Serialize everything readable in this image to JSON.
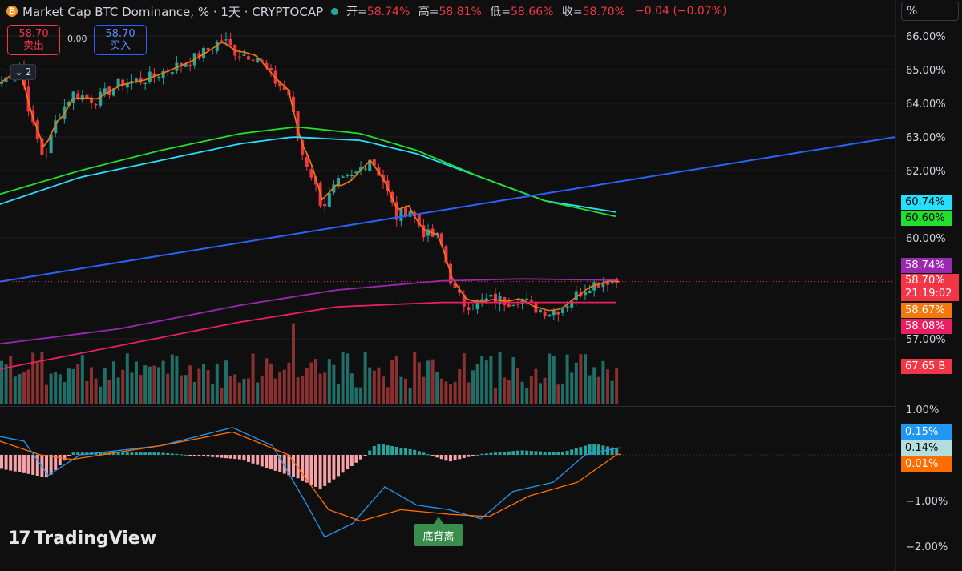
{
  "header": {
    "symbol_icon": "bitcoin-icon",
    "title": "Market Cap BTC Dominance, % · 1天 · CRYPTOCAP",
    "open_label": "开=",
    "open_value": "58.74%",
    "high_label": "高=",
    "high_value": "58.81%",
    "low_label": "低=",
    "low_value": "58.66%",
    "close_label": "收=",
    "close_value": "58.70%",
    "change": "−0.04 (−0.07%)"
  },
  "trade": {
    "sell_price": "58.70",
    "sell_label": "卖出",
    "spread": "0.00",
    "buy_price": "58.70",
    "buy_label": "买入"
  },
  "indicators_toggle": {
    "count": "2",
    "icon": "chevron-down-icon"
  },
  "unit_label": "%",
  "price_tags": {
    "ma_cyan": "60.74%",
    "ma_green": "60.60%",
    "ma_purple": "58.74%",
    "last_price": "58.70%",
    "countdown": "21:19:02",
    "ma_orange": "58.67%",
    "ma_pink": "58.08%",
    "volume": "67.65 B",
    "macd_blue": "0.15%",
    "macd_hist": "0.14%",
    "macd_orange": "0.01%"
  },
  "colors": {
    "up": "#26a69a",
    "down": "#f23645",
    "up_vol": "#1f6f68",
    "down_vol": "#8a3030",
    "ma_cyan": "#26e0ff",
    "ma_green": "#22e02a",
    "ma_orange": "#f5780f",
    "ma_purple": "#9c27b0",
    "ma_pink": "#e91e63",
    "trendline": "#2962ff",
    "macd_line": "#2196f3",
    "signal_line": "#ff6d00"
  },
  "annotation": "底背离",
  "logo_text": "TradingView",
  "chart_data": {
    "type": "candlestick",
    "title": "Market Cap BTC Dominance, %",
    "y_axis_ticks": [
      "66.00%",
      "65.00%",
      "64.00%",
      "63.00%",
      "62.00%",
      "60.00%",
      "57.00%"
    ],
    "macd_axis_ticks": [
      "1.00%",
      "−1.00%",
      "−2.00%"
    ],
    "ylim": [
      56.0,
      66.3
    ],
    "anchors": [
      [
        0,
        64.6
      ],
      [
        25,
        65.1
      ],
      [
        40,
        63.4
      ],
      [
        55,
        62.3
      ],
      [
        70,
        63.5
      ],
      [
        90,
        64.3
      ],
      [
        120,
        64.1
      ],
      [
        150,
        64.6
      ],
      [
        180,
        64.7
      ],
      [
        210,
        65.0
      ],
      [
        240,
        65.3
      ],
      [
        260,
        65.6
      ],
      [
        278,
        65.9
      ],
      [
        295,
        65.5
      ],
      [
        320,
        65.4
      ],
      [
        345,
        64.6
      ],
      [
        360,
        64.3
      ],
      [
        375,
        62.6
      ],
      [
        390,
        61.8
      ],
      [
        402,
        60.9
      ],
      [
        420,
        61.6
      ],
      [
        440,
        61.8
      ],
      [
        462,
        62.4
      ],
      [
        478,
        61.7
      ],
      [
        495,
        60.6
      ],
      [
        510,
        60.9
      ],
      [
        530,
        60.1
      ],
      [
        548,
        60.0
      ],
      [
        565,
        58.5
      ],
      [
        580,
        58.0
      ],
      [
        600,
        58.1
      ],
      [
        615,
        58.2
      ],
      [
        632,
        58.1
      ],
      [
        650,
        58.2
      ],
      [
        668,
        57.9
      ],
      [
        685,
        57.8
      ],
      [
        700,
        57.9
      ],
      [
        718,
        58.3
      ],
      [
        735,
        58.6
      ],
      [
        760,
        58.75
      ],
      [
        770,
        58.7
      ]
    ],
    "moving_averages": [
      {
        "color": "ma_cyan",
        "value": "60.74%",
        "points": [
          [
            0,
            61.0
          ],
          [
            100,
            61.8
          ],
          [
            200,
            62.3
          ],
          [
            300,
            62.8
          ],
          [
            365,
            63.0
          ],
          [
            450,
            62.9
          ],
          [
            520,
            62.5
          ],
          [
            600,
            61.8
          ],
          [
            680,
            61.1
          ],
          [
            775,
            60.74
          ]
        ]
      },
      {
        "color": "ma_green",
        "value": "60.60%",
        "points": [
          [
            0,
            61.3
          ],
          [
            100,
            62.0
          ],
          [
            200,
            62.6
          ],
          [
            300,
            63.1
          ],
          [
            370,
            63.3
          ],
          [
            450,
            63.1
          ],
          [
            520,
            62.6
          ],
          [
            600,
            61.8
          ],
          [
            680,
            61.1
          ],
          [
            775,
            60.6
          ]
        ]
      },
      {
        "color": "ma_purple",
        "value": "58.74%",
        "points": [
          [
            0,
            56.85
          ],
          [
            150,
            57.3
          ],
          [
            300,
            58.0
          ],
          [
            420,
            58.45
          ],
          [
            550,
            58.72
          ],
          [
            650,
            58.78
          ],
          [
            775,
            58.74
          ]
        ]
      },
      {
        "color": "ma_pink",
        "value": "58.08%",
        "points": [
          [
            0,
            56.1
          ],
          [
            150,
            56.8
          ],
          [
            300,
            57.5
          ],
          [
            420,
            57.95
          ],
          [
            550,
            58.08
          ],
          [
            650,
            58.08
          ],
          [
            775,
            58.08
          ]
        ]
      }
    ],
    "trendline": [
      [
        0,
        58.7
      ],
      [
        1117,
        63.0
      ]
    ],
    "last_price": 58.7,
    "volume_last": "67.65 B"
  }
}
